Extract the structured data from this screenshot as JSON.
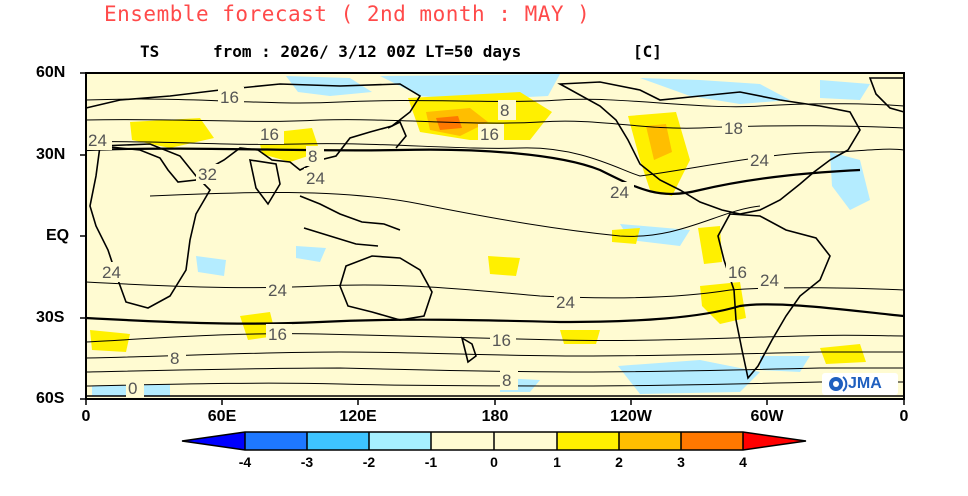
{
  "header": {
    "title": "Ensemble forecast ( 2nd month : MAY )",
    "variable": "TS",
    "init": "from : 2026/ 3/12 00Z LT=50 days",
    "unit": "[C]"
  },
  "axes": {
    "lat_labels": [
      "60N",
      "30N",
      "EQ",
      "30S",
      "60S"
    ],
    "lon_labels": [
      "0",
      "60E",
      "120E",
      "180",
      "120W",
      "60W",
      "0"
    ]
  },
  "contour_labels": [
    "16",
    "8",
    "16",
    "24",
    "24",
    "16",
    "16",
    "8",
    "32",
    "24",
    "18",
    "24",
    "24",
    "24",
    "24",
    "16",
    "24",
    "24",
    "16",
    "16",
    "8",
    "8",
    "0"
  ],
  "colorbar": {
    "tick_labels": [
      "-4",
      "-3",
      "-2",
      "-1",
      "0",
      "1",
      "2",
      "3",
      "4"
    ],
    "colors": [
      "#0000ff",
      "#1e78ff",
      "#3ec4ff",
      "#a6f0ff",
      "#fffbd2",
      "#fff000",
      "#ffbe00",
      "#ff7800",
      "#ff0000"
    ]
  },
  "logo": {
    "text": "JMA",
    "icon": "jma-logo-icon"
  }
}
